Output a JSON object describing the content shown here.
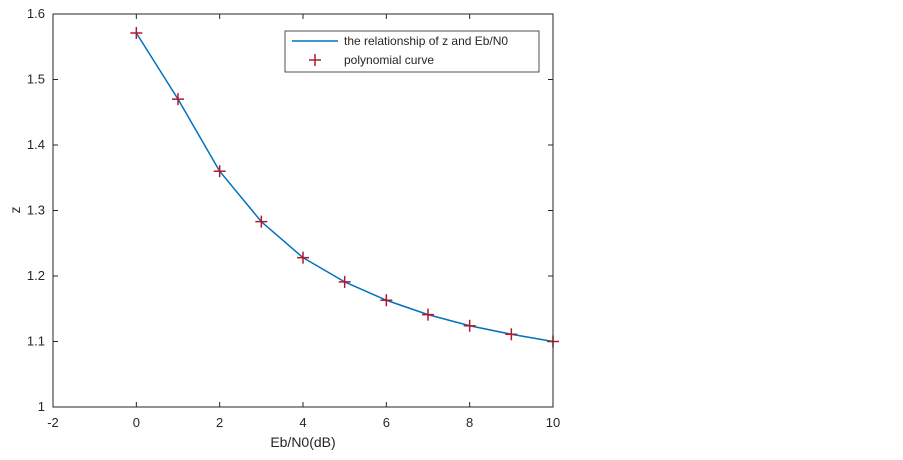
{
  "chart_data": {
    "type": "line",
    "title": "",
    "xlabel": "Eb/N0(dB)",
    "ylabel": "z",
    "xlim": [
      -2,
      10
    ],
    "ylim": [
      1,
      1.6
    ],
    "xticks": [
      -2,
      0,
      2,
      4,
      6,
      8,
      10
    ],
    "yticks": [
      1,
      1.1,
      1.2,
      1.3,
      1.4,
      1.5,
      1.6
    ],
    "xtick_labels": [
      "-2",
      "0",
      "2",
      "4",
      "6",
      "8",
      "10"
    ],
    "ytick_labels": [
      "1",
      "1.1",
      "1.2",
      "1.3",
      "1.4",
      "1.5",
      "1.6"
    ],
    "grid": false,
    "legend_position": "top-right",
    "series": [
      {
        "name": "the relationship of z and Eb/N0",
        "style": "line",
        "color": "#0072BD",
        "x": [
          0,
          1,
          2,
          3,
          4,
          5,
          6,
          7,
          8,
          9,
          10
        ],
        "y": [
          1.571,
          1.47,
          1.36,
          1.283,
          1.228,
          1.191,
          1.163,
          1.141,
          1.124,
          1.111,
          1.1
        ]
      },
      {
        "name": "polynomial curve",
        "style": "marker-plus",
        "color": "#B2182B",
        "x": [
          0,
          1,
          2,
          3,
          4,
          5,
          6,
          7,
          8,
          9,
          10
        ],
        "y": [
          1.571,
          1.47,
          1.36,
          1.283,
          1.228,
          1.191,
          1.163,
          1.141,
          1.124,
          1.111,
          1.1
        ]
      }
    ]
  }
}
